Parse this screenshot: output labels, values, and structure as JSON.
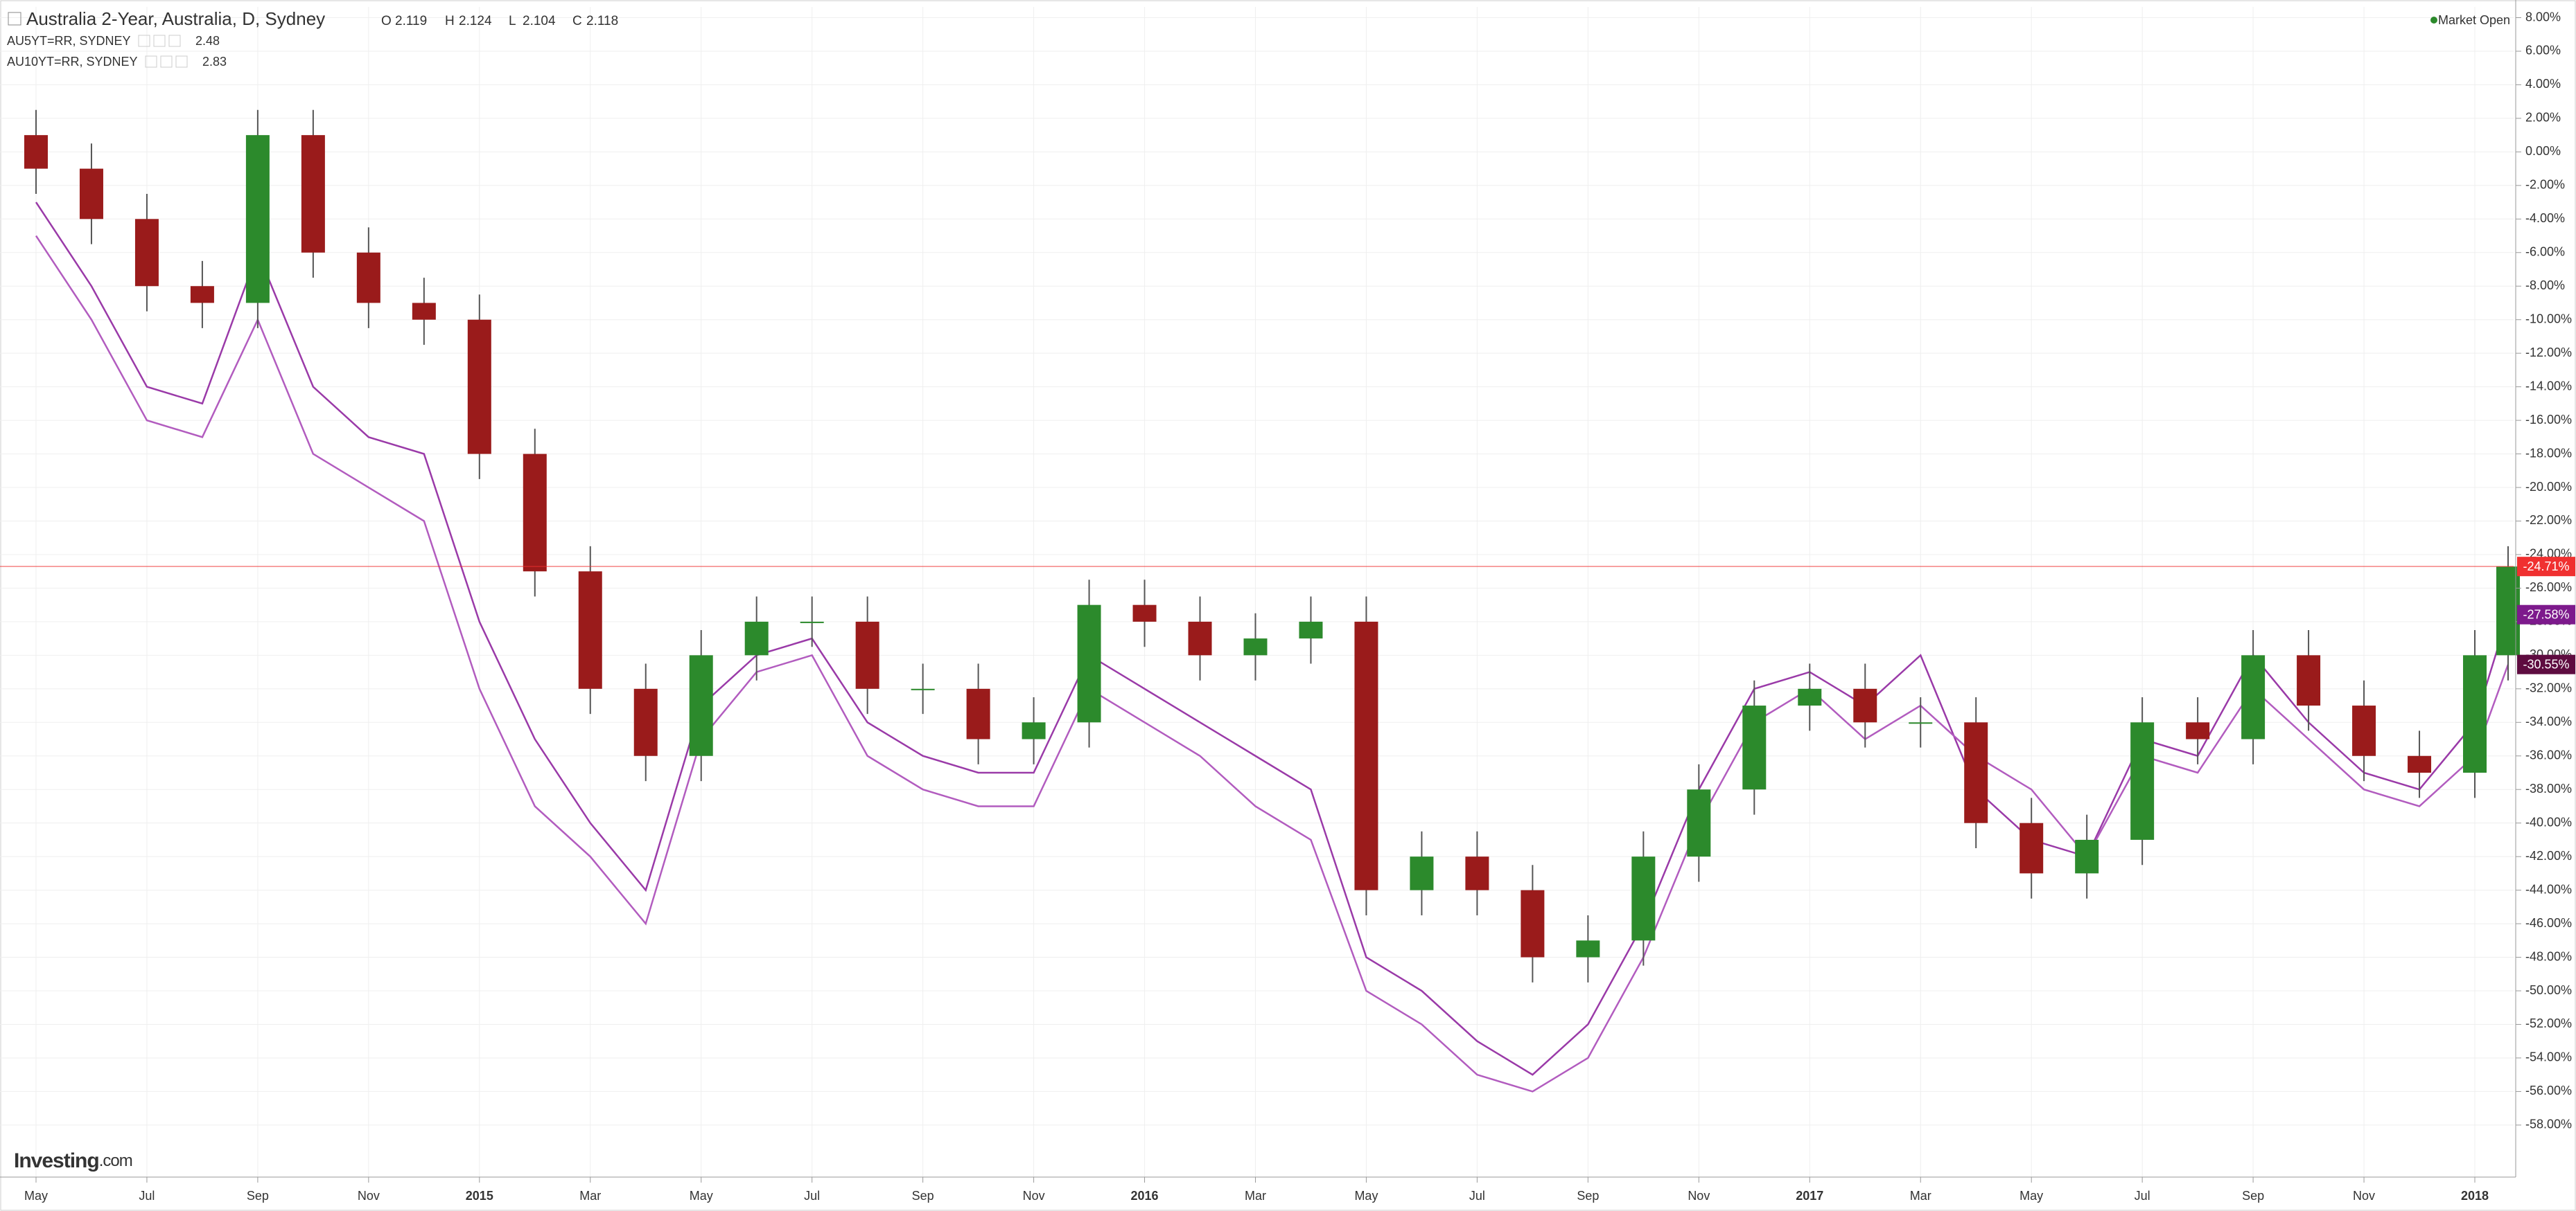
{
  "chart_data": {
    "type": "candlestick",
    "title": "Australia 2-Year, Australia, D, Sydney",
    "ohlc": [
      {
        "key": "O",
        "value": "2.119"
      },
      {
        "key": "H",
        "value": "2.124"
      },
      {
        "key": "L",
        "value": "2.104"
      },
      {
        "key": "C",
        "value": "2.118"
      }
    ],
    "status": "Market Open",
    "brand": "Investing",
    "brand_suffix": ".com",
    "up_color": "#2c8a2c",
    "down_color": "#9a1b1b",
    "x": [
      0,
      1,
      2,
      3,
      4,
      5,
      6,
      7,
      8,
      9,
      10,
      11,
      12,
      13,
      14,
      15,
      16,
      17,
      18,
      19,
      20,
      21,
      22,
      23,
      24,
      25,
      26,
      27,
      28,
      29,
      30,
      31,
      32,
      33,
      34,
      35,
      36,
      37,
      38,
      39,
      40,
      41,
      42,
      43,
      44,
      44.6
    ],
    "open": [
      1,
      -1,
      -4,
      -8,
      -9,
      1,
      -6,
      -9,
      -10,
      -18,
      -25,
      -32,
      -36,
      -30,
      -28,
      -28,
      -32,
      -32,
      -35,
      -34,
      -27,
      -28,
      -30,
      -29,
      -28,
      -44,
      -42,
      -44,
      -48,
      -47,
      -42,
      -38,
      -33,
      -32,
      -34,
      -34,
      -40,
      -43,
      -41,
      -34,
      -35,
      -30,
      -33,
      -36,
      -37,
      -30
    ],
    "high": [
      2.5,
      0.5,
      -2.5,
      -6.5,
      2.5,
      2.5,
      -4.5,
      -7.5,
      -8.5,
      -16.5,
      -23.5,
      -30.5,
      -28.5,
      -26.5,
      -26.5,
      -26.5,
      -30.5,
      -30.5,
      -32.5,
      -25.5,
      -25.5,
      -26.5,
      -27.5,
      -26.5,
      -26.5,
      -40.5,
      -40.5,
      -42.5,
      -45.5,
      -40.5,
      -36.5,
      -31.5,
      -30.5,
      -30.5,
      -32.5,
      -32.5,
      -38.5,
      -39.5,
      -32.5,
      -32.5,
      -28.5,
      -28.5,
      -31.5,
      -34.5,
      -28.5,
      -23.5
    ],
    "low": [
      -2.5,
      -5.5,
      -9.5,
      -10.5,
      -10.5,
      -7.5,
      -10.5,
      -11.5,
      -19.5,
      -26.5,
      -33.5,
      -37.5,
      -37.5,
      -31.5,
      -29.5,
      -33.5,
      -33.5,
      -36.5,
      -36.5,
      -35.5,
      -29.5,
      -31.5,
      -31.5,
      -30.5,
      -45.5,
      -45.5,
      -45.5,
      -49.5,
      -49.5,
      -48.5,
      -43.5,
      -39.5,
      -34.5,
      -35.5,
      -35.5,
      -41.5,
      -44.5,
      -44.5,
      -42.5,
      -36.5,
      -36.5,
      -34.5,
      -37.5,
      -38.5,
      -38.5,
      -31.5
    ],
    "close": [
      -1,
      -4,
      -8,
      -9,
      1,
      -6,
      -9,
      -10,
      -18,
      -25,
      -32,
      -36,
      -30,
      -28,
      -28,
      -32,
      -32,
      -35,
      -34,
      -27,
      -28,
      -30,
      -29,
      -28,
      -44,
      -42,
      -44,
      -48,
      -47,
      -42,
      -38,
      -33,
      -32,
      -34,
      -34,
      -40,
      -43,
      -41,
      -34,
      -35,
      -30,
      -33,
      -36,
      -37,
      -30,
      -24.71
    ],
    "last_label": "-24.71%",
    "last_color": "#f03030",
    "lines": [
      {
        "name": "AU5YT=RR, SYDNEY",
        "last_value": "2.48",
        "color": "#9a3aa8",
        "tag_color": "#7d1a8c",
        "last_label": "-27.58%",
        "values": [
          -3,
          -8,
          -14,
          -15,
          -6,
          -14,
          -17,
          -18,
          -28,
          -35,
          -40,
          -44,
          -33,
          -30,
          -29,
          -34,
          -36,
          -37,
          -37,
          -30,
          -32,
          -34,
          -36,
          -38,
          -48,
          -50,
          -53,
          -55,
          -52,
          -46,
          -38,
          -32,
          -31,
          -33,
          -30,
          -38,
          -41,
          -42,
          -35,
          -36,
          -30,
          -34,
          -37,
          -38,
          -34,
          -27.58
        ]
      },
      {
        "name": "AU10YT=RR, SYDNEY",
        "last_value": "2.83",
        "color": "#b25cbf",
        "tag_color": "#5e0c40",
        "last_label": "-30.55%",
        "values": [
          -5,
          -10,
          -16,
          -17,
          -10,
          -18,
          -20,
          -22,
          -32,
          -39,
          -42,
          -46,
          -35,
          -31,
          -30,
          -36,
          -38,
          -39,
          -39,
          -32,
          -34,
          -36,
          -39,
          -41,
          -50,
          -52,
          -55,
          -56,
          -54,
          -48,
          -40,
          -34,
          -32,
          -35,
          -33,
          -36,
          -38,
          -42,
          -36,
          -37,
          -32,
          -35,
          -38,
          -39,
          -36,
          -30.55
        ]
      }
    ],
    "xlim": [
      -0.65,
      44.7
    ],
    "xticks": [
      {
        "value": 0,
        "label": "May"
      },
      {
        "value": 2,
        "label": "Jul"
      },
      {
        "value": 4,
        "label": "Sep"
      },
      {
        "value": 6,
        "label": "Nov"
      },
      {
        "value": 8,
        "label": "2015"
      },
      {
        "value": 10,
        "label": "Mar"
      },
      {
        "value": 12,
        "label": "May"
      },
      {
        "value": 14,
        "label": "Jul"
      },
      {
        "value": 16,
        "label": "Sep"
      },
      {
        "value": 18,
        "label": "Nov"
      },
      {
        "value": 20,
        "label": "2016"
      },
      {
        "value": 22,
        "label": "Mar"
      },
      {
        "value": 24,
        "label": "May"
      },
      {
        "value": 26,
        "label": "Jul"
      },
      {
        "value": 28,
        "label": "Sep"
      },
      {
        "value": 30,
        "label": "Nov"
      },
      {
        "value": 32,
        "label": "2017"
      },
      {
        "value": 34,
        "label": "Mar"
      },
      {
        "value": 36,
        "label": "May"
      },
      {
        "value": 38,
        "label": "Jul"
      },
      {
        "value": 40,
        "label": "Sep"
      },
      {
        "value": 42,
        "label": "Nov"
      },
      {
        "value": 44,
        "label": "2018"
      }
    ],
    "ylim": [
      8.64,
      -61.1
    ],
    "yticks": [
      {
        "value": 8,
        "label": "8.00%"
      },
      {
        "value": 6,
        "label": "6.00%"
      },
      {
        "value": 4,
        "label": "4.00%"
      },
      {
        "value": 2,
        "label": "2.00%"
      },
      {
        "value": 0,
        "label": "0.00%"
      },
      {
        "value": -2,
        "label": "-2.00%"
      },
      {
        "value": -4,
        "label": "-4.00%"
      },
      {
        "value": -6,
        "label": "-6.00%"
      },
      {
        "value": -8,
        "label": "-8.00%"
      },
      {
        "value": -10,
        "label": "-10.00%"
      },
      {
        "value": -12,
        "label": "-12.00%"
      },
      {
        "value": -14,
        "label": "-14.00%"
      },
      {
        "value": -16,
        "label": "-16.00%"
      },
      {
        "value": -18,
        "label": "-18.00%"
      },
      {
        "value": -20,
        "label": "-20.00%"
      },
      {
        "value": -22,
        "label": "-22.00%"
      },
      {
        "value": -24,
        "label": "-24.00%"
      },
      {
        "value": -26,
        "label": "-26.00%"
      },
      {
        "value": -28,
        "label": "-28.00%"
      },
      {
        "value": -30,
        "label": "-30.00%"
      },
      {
        "value": -32,
        "label": "-32.00%"
      },
      {
        "value": -34,
        "label": "-34.00%"
      },
      {
        "value": -36,
        "label": "-36.00%"
      },
      {
        "value": -38,
        "label": "-38.00%"
      },
      {
        "value": -40,
        "label": "-40.00%"
      },
      {
        "value": -42,
        "label": "-42.00%"
      },
      {
        "value": -44,
        "label": "-44.00%"
      },
      {
        "value": -46,
        "label": "-46.00%"
      },
      {
        "value": -48,
        "label": "-48.00%"
      },
      {
        "value": -50,
        "label": "-50.00%"
      },
      {
        "value": -52,
        "label": "-52.00%"
      },
      {
        "value": -54,
        "label": "-54.00%"
      },
      {
        "value": -56,
        "label": "-56.00%"
      },
      {
        "value": -58,
        "label": "-58.00%"
      }
    ],
    "grid": true
  }
}
